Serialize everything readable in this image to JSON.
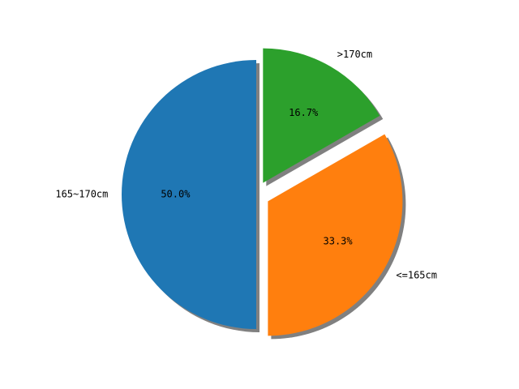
{
  "chart_data": {
    "type": "pie",
    "slices": [
      {
        "label": ">170cm",
        "value": 16.7,
        "pct_label": "16.7%",
        "color": "#2ca02c",
        "explode": 0.1
      },
      {
        "label": "<=165cm",
        "value": 33.3,
        "pct_label": "33.3%",
        "color": "#ff7f0e",
        "explode": 0.1
      },
      {
        "label": "165~170cm",
        "value": 50.0,
        "pct_label": "50.0%",
        "color": "#1f77b4",
        "explode": 0.0
      }
    ],
    "start_angle_deg": 90,
    "direction": "clockwise",
    "shadow": true,
    "shadow_color": "#808080",
    "title": ""
  }
}
